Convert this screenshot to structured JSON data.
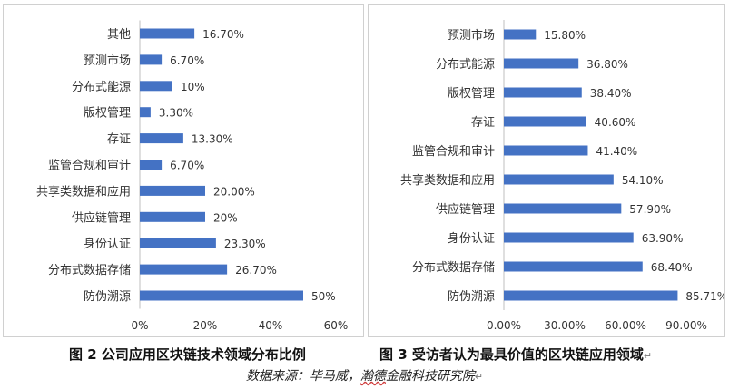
{
  "chart_data": [
    {
      "type": "bar",
      "orientation": "horizontal",
      "categories": [
        "其他",
        "预测市场",
        "分布式能源",
        "版权管理",
        "存证",
        "监管合规和审计",
        "共享类数据和应用",
        "供应链管理",
        "身份认证",
        "分布式数据存储",
        "防伪溯源"
      ],
      "values": [
        16.7,
        6.7,
        10,
        3.3,
        13.3,
        6.7,
        20.0,
        20,
        23.3,
        26.7,
        50
      ],
      "value_labels": [
        "16.70%",
        "6.70%",
        "10%",
        "3.30%",
        "13.30%",
        "6.70%",
        "20.00%",
        "20%",
        "23.30%",
        "26.70%",
        "50%"
      ],
      "xticks": [
        0,
        20,
        40,
        60
      ],
      "xtick_labels": [
        "0%",
        "20%",
        "40%",
        "60%"
      ],
      "xlim": [
        0,
        60
      ],
      "grid": false,
      "bar_color": "#4472C4",
      "caption": "图 2  公司应用区块链技术领域分布比例"
    },
    {
      "type": "bar",
      "orientation": "horizontal",
      "categories": [
        "预测市场",
        "分布式能源",
        "版权管理",
        "存证",
        "监管合规和审计",
        "共享类数据和应用",
        "供应链管理",
        "身份认证",
        "分布式数据存储",
        "防伪溯源"
      ],
      "values": [
        15.8,
        36.8,
        38.4,
        40.6,
        41.4,
        54.1,
        57.9,
        63.9,
        68.4,
        85.71
      ],
      "value_labels": [
        "15.80%",
        "36.80%",
        "38.40%",
        "40.60%",
        "41.40%",
        "54.10%",
        "57.90%",
        "63.90%",
        "68.40%",
        "85.71%"
      ],
      "xticks": [
        0,
        30,
        60,
        90
      ],
      "xtick_labels": [
        "0.00%",
        "30.00%",
        "60.00%",
        "90.00%"
      ],
      "xlim": [
        0,
        90
      ],
      "grid": false,
      "bar_color": "#4472C4",
      "caption": "图 3  受访者认为最具价值的区块链应用领域"
    }
  ],
  "source": {
    "label": "数据来源：毕马威，",
    "underlined": "瀚德",
    "rest": "金融科技研究院"
  },
  "marks": {
    "enter": "↵"
  }
}
